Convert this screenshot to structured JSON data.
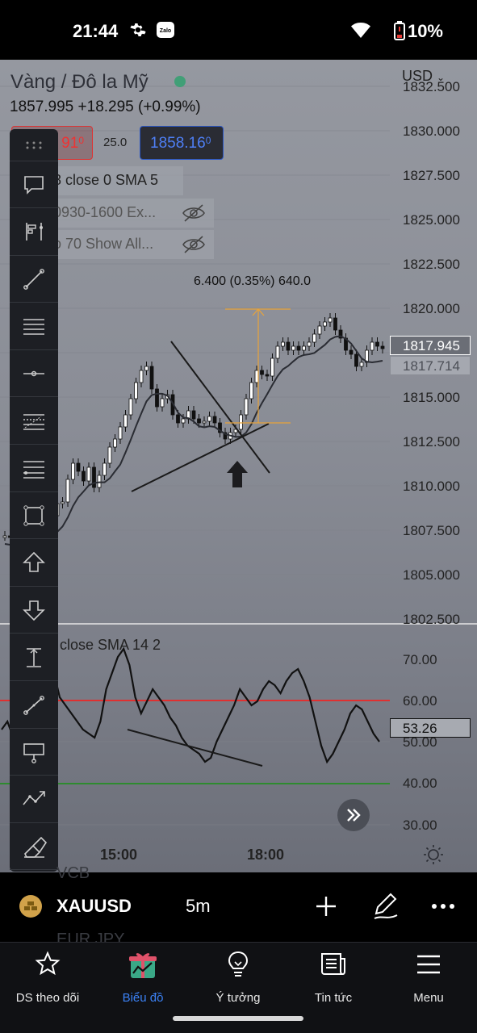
{
  "status_bar": {
    "time": "21:44",
    "battery": "10%",
    "icons": [
      "gear-icon",
      "zalo-icon",
      "wifi-icon",
      "battery-low-icon"
    ]
  },
  "chart": {
    "title": "Vàng / Đô la Mỹ",
    "price_line": "1857.995 +18.295 (+0.99%)",
    "currency": "USD",
    "bid": "1857.91",
    "bid_visible": "91",
    "bid_sup": "0",
    "spread": "25.0",
    "ask": "1858.16",
    "ask_sup": "0",
    "indicators": [
      "8 close 0 SMA 5",
      "0930-1600 Ex...",
      "o 70 Show All..."
    ],
    "measure": "6.400 (0.35%) 640.0",
    "price_axis": [
      "1832.500",
      "1830.000",
      "1827.500",
      "1825.000",
      "1822.500",
      "1820.000",
      "1817.500",
      "1815.000",
      "1812.500",
      "1810.000",
      "1807.500",
      "1805.000",
      "1802.500"
    ],
    "last_price": "1817.945",
    "sma_price": "1817.714",
    "osc_title": "close SMA 14 2",
    "osc_axis": [
      "70.00",
      "60.00",
      "50.00",
      "40.00",
      "30.00"
    ],
    "osc_value": "53.26",
    "time_axis": [
      "15:00",
      "18:00"
    ],
    "colors": {
      "overbought_line": "#e03030",
      "oversold_line": "#2e8b2e",
      "measure": "#e8a33a"
    }
  },
  "toolbar": [
    "comment-icon",
    "anchored-vwap-icon",
    "trend-line-icon",
    "horizontal-lines-icon",
    "horizontal-ray-icon",
    "fib-retracement-icon",
    "fib-extension-icon",
    "rectangle-icon",
    "arrow-up-icon",
    "arrow-down-icon",
    "price-range-icon",
    "trend-angle-icon",
    "callout-icon",
    "forecast-icon",
    "eraser-icon"
  ],
  "symbol_bar": {
    "ticker": "XAUUSD",
    "interval": "5m",
    "ghost_top": "VCB",
    "ghost_bottom": "EUR JPY"
  },
  "nav": [
    {
      "label": "DS theo dõi",
      "icon": "star-icon"
    },
    {
      "label": "Biểu đồ",
      "icon": "chart-gift-icon"
    },
    {
      "label": "Ý tưởng",
      "icon": "lightbulb-icon"
    },
    {
      "label": "Tin tức",
      "icon": "news-icon"
    },
    {
      "label": "Menu",
      "icon": "hamburger-icon"
    }
  ]
}
